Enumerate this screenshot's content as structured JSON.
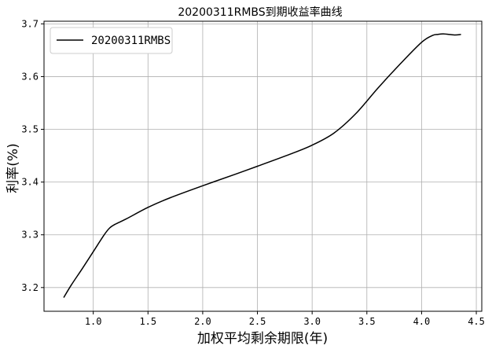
{
  "chart_data": {
    "type": "line",
    "title": "20200311RMBS到期收益率曲线",
    "xlabel": "加权平均剩余期限(年)",
    "ylabel": "利率(%)",
    "xlim": [
      0.55,
      4.55
    ],
    "ylim": [
      3.155,
      3.705
    ],
    "xticks": [
      1.0,
      1.5,
      2.0,
      2.5,
      3.0,
      3.5,
      4.0,
      4.5
    ],
    "xtick_labels": [
      "1.0",
      "1.5",
      "2.0",
      "2.5",
      "3.0",
      "3.5",
      "4.0",
      "4.5"
    ],
    "yticks": [
      3.2,
      3.3,
      3.4,
      3.5,
      3.6,
      3.7
    ],
    "ytick_labels": [
      "3.2",
      "3.3",
      "3.4",
      "3.5",
      "3.6",
      "3.7"
    ],
    "grid": true,
    "legend_position": "top-left",
    "series": [
      {
        "name": "20200311RMBS",
        "color": "#000000",
        "x": [
          0.73,
          0.8,
          0.9,
          1.0,
          1.1,
          1.15,
          1.2,
          1.3,
          1.5,
          1.7,
          2.0,
          2.3,
          2.5,
          2.8,
          3.0,
          3.2,
          3.4,
          3.6,
          3.8,
          4.0,
          4.1,
          4.15,
          4.2,
          4.3,
          4.36
        ],
        "y": [
          3.181,
          3.205,
          3.236,
          3.268,
          3.3,
          3.313,
          3.32,
          3.33,
          3.352,
          3.37,
          3.393,
          3.415,
          3.43,
          3.453,
          3.47,
          3.493,
          3.53,
          3.578,
          3.623,
          3.665,
          3.678,
          3.68,
          3.681,
          3.679,
          3.68
        ]
      }
    ]
  }
}
